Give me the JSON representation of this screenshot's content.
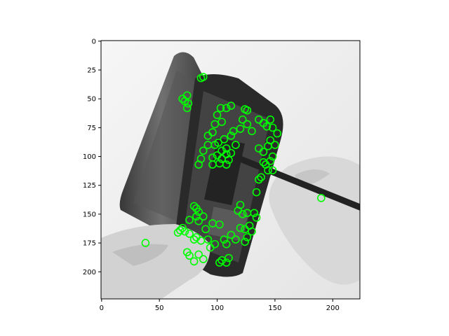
{
  "chart_data": {
    "type": "scatter",
    "title": "",
    "xlabel": "",
    "ylabel": "",
    "xlim": [
      -0.5,
      223.5
    ],
    "ylim": [
      223.5,
      -0.5
    ],
    "y_inverted": true,
    "grid": false,
    "legend": "none",
    "background": "grayscale photo of hands opening a smartphone with a pry tool",
    "xticks": [
      0,
      50,
      100,
      150,
      200
    ],
    "yticks": [
      0,
      25,
      50,
      75,
      100,
      125,
      150,
      175,
      200
    ],
    "xtick_labels": [
      "0",
      "50",
      "100",
      "150",
      "200"
    ],
    "ytick_labels": [
      "0",
      "25",
      "50",
      "75",
      "100",
      "125",
      "150",
      "175",
      "200"
    ],
    "marker": "circle",
    "marker_color": "#00ff00",
    "series": [
      {
        "points": [
          [
            88,
            31
          ],
          [
            86,
            32
          ],
          [
            74,
            47
          ],
          [
            72,
            52
          ],
          [
            75,
            54
          ],
          [
            74,
            58
          ],
          [
            70,
            50
          ],
          [
            103,
            58
          ],
          [
            108,
            58
          ],
          [
            100,
            64
          ],
          [
            112,
            56
          ],
          [
            98,
            72
          ],
          [
            104,
            70
          ],
          [
            124,
            59
          ],
          [
            126,
            60
          ],
          [
            96,
            79
          ],
          [
            92,
            82
          ],
          [
            92,
            90
          ],
          [
            98,
            90
          ],
          [
            101,
            88
          ],
          [
            106,
            85
          ],
          [
            112,
            82
          ],
          [
            114,
            78
          ],
          [
            122,
            68
          ],
          [
            126,
            72
          ],
          [
            120,
            76
          ],
          [
            130,
            78
          ],
          [
            136,
            68
          ],
          [
            140,
            71
          ],
          [
            146,
            68
          ],
          [
            148,
            75
          ],
          [
            152,
            80
          ],
          [
            143,
            74
          ],
          [
            116,
            90
          ],
          [
            108,
            93
          ],
          [
            104,
            95
          ],
          [
            100,
            99
          ],
          [
            104,
            102
          ],
          [
            108,
            98
          ],
          [
            110,
            103
          ],
          [
            112,
            97
          ],
          [
            96,
            101
          ],
          [
            88,
            95
          ],
          [
            86,
            102
          ],
          [
            84,
            107
          ],
          [
            96,
            107
          ],
          [
            102,
            106
          ],
          [
            108,
            107
          ],
          [
            136,
            93
          ],
          [
            140,
            96
          ],
          [
            144,
            91
          ],
          [
            146,
            86
          ],
          [
            150,
            90
          ],
          [
            148,
            100
          ],
          [
            146,
            104
          ],
          [
            140,
            105
          ],
          [
            148,
            112
          ],
          [
            144,
            112
          ],
          [
            142,
            107
          ],
          [
            136,
            120
          ],
          [
            138,
            118
          ],
          [
            134,
            131
          ],
          [
            190,
            136
          ],
          [
            80,
            143
          ],
          [
            82,
            145
          ],
          [
            84,
            148
          ],
          [
            82,
            152
          ],
          [
            88,
            152
          ],
          [
            84,
            156
          ],
          [
            76,
            155
          ],
          [
            120,
            142
          ],
          [
            118,
            147
          ],
          [
            122,
            150
          ],
          [
            126,
            149
          ],
          [
            132,
            149
          ],
          [
            134,
            153
          ],
          [
            70,
            162
          ],
          [
            68,
            164
          ],
          [
            66,
            166
          ],
          [
            72,
            165
          ],
          [
            76,
            167
          ],
          [
            82,
            170
          ],
          [
            90,
            163
          ],
          [
            96,
            158
          ],
          [
            102,
            159
          ],
          [
            120,
            162
          ],
          [
            124,
            163
          ],
          [
            128,
            160
          ],
          [
            130,
            165
          ],
          [
            126,
            170
          ],
          [
            124,
            174
          ],
          [
            116,
            172
          ],
          [
            112,
            168
          ],
          [
            106,
            172
          ],
          [
            108,
            176
          ],
          [
            86,
            173
          ],
          [
            92,
            172
          ],
          [
            94,
            179
          ],
          [
            98,
            176
          ],
          [
            80,
            172
          ],
          [
            38,
            175
          ],
          [
            74,
            183
          ],
          [
            76,
            186
          ],
          [
            84,
            185
          ],
          [
            88,
            189
          ],
          [
            80,
            191
          ],
          [
            104,
            190
          ],
          [
            102,
            192
          ],
          [
            108,
            192
          ],
          [
            110,
            188
          ]
        ]
      }
    ]
  }
}
